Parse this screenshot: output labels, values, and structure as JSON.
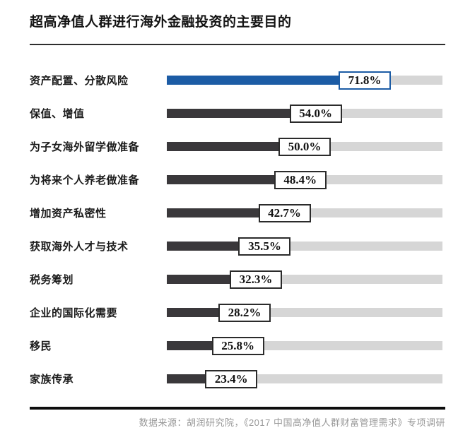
{
  "title": "超高净值人群进行海外金融投资的主要目的",
  "footer": {
    "source": "数据来源：胡润研究院，《2017 中国高净值人群财富管理需求》专项调研"
  },
  "colors": {
    "highlight_bar": "#1c5ca5",
    "bar": "#3a383b",
    "track": "#d6d6d6",
    "box_border": "#2b2b2b"
  },
  "chart_data": {
    "type": "bar",
    "orientation": "horizontal",
    "title": "超高净值人群进行海外金融投资的主要目的",
    "categories": [
      "资产配置、分散风险",
      "保值、增值",
      "为子女海外留学做准备",
      "为将来个人养老做准备",
      "增加资产私密性",
      "获取海外人才与技术",
      "税务筹划",
      "企业的国际化需要",
      "移民",
      "家族传承"
    ],
    "values": [
      71.8,
      54.0,
      50.0,
      48.4,
      42.7,
      35.5,
      32.3,
      28.2,
      25.8,
      23.4
    ],
    "value_labels": [
      "71.8%",
      "54.0%",
      "50.0%",
      "48.4%",
      "42.7%",
      "35.5%",
      "32.3%",
      "28.2%",
      "25.8%",
      "23.4%"
    ],
    "xlim": [
      0,
      100
    ],
    "highlight_index": 0,
    "grid": false,
    "legend": false
  }
}
